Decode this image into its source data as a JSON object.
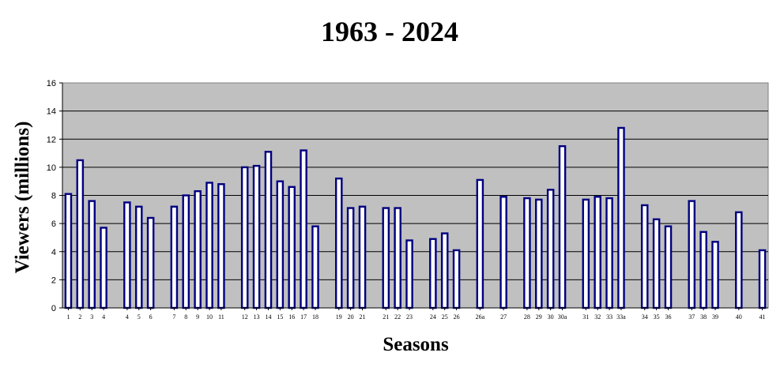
{
  "chart_data": {
    "type": "bar",
    "title": "1963 - 2024",
    "xlabel": "Seasons",
    "ylabel": "Viewers (millions)",
    "ylim": [
      0,
      16
    ],
    "yticks": [
      0,
      2,
      4,
      6,
      8,
      10,
      12,
      14,
      16
    ],
    "grid": true,
    "legend": "none",
    "colors": {
      "plot_background": "#c0c0c0",
      "bar_fill": "#ffffff",
      "bar_border": "#000080",
      "gridline": "#000000"
    },
    "groups": [
      {
        "categories": [
          "1",
          "2",
          "3",
          "4"
        ],
        "values": [
          8.1,
          10.5,
          7.6,
          5.7
        ]
      },
      {
        "categories": [
          "4",
          "5",
          "6"
        ],
        "values": [
          7.5,
          7.2,
          6.4
        ]
      },
      {
        "categories": [
          "7",
          "8",
          "9",
          "10",
          "11"
        ],
        "values": [
          7.2,
          8.0,
          8.3,
          8.9,
          8.8
        ]
      },
      {
        "categories": [
          "12",
          "13",
          "14",
          "15",
          "16",
          "17",
          "18"
        ],
        "values": [
          10.0,
          10.1,
          11.1,
          9.0,
          8.6,
          11.2,
          5.8
        ]
      },
      {
        "categories": [
          "19",
          "20",
          "21"
        ],
        "values": [
          9.2,
          7.1,
          7.2
        ]
      },
      {
        "categories": [
          "21",
          "22",
          "23"
        ],
        "values": [
          7.1,
          7.1,
          4.8
        ]
      },
      {
        "categories": [
          "24",
          "25",
          "26"
        ],
        "values": [
          4.9,
          5.3,
          4.1
        ]
      },
      {
        "categories": [
          "26a"
        ],
        "values": [
          9.1
        ]
      },
      {
        "categories": [
          "27"
        ],
        "values": [
          7.9
        ]
      },
      {
        "categories": [
          "28",
          "29",
          "30",
          "30a"
        ],
        "values": [
          7.8,
          7.7,
          8.4,
          11.5
        ]
      },
      {
        "categories": [
          "31",
          "32",
          "33",
          "33a"
        ],
        "values": [
          7.7,
          7.9,
          7.8,
          12.8
        ]
      },
      {
        "categories": [
          "34",
          "35",
          "36"
        ],
        "values": [
          7.3,
          6.3,
          5.8
        ]
      },
      {
        "categories": [
          "37",
          "38",
          "39"
        ],
        "values": [
          7.6,
          5.4,
          4.7
        ]
      },
      {
        "categories": [
          "40"
        ],
        "values": [
          6.8
        ]
      },
      {
        "categories": [
          "41"
        ],
        "values": [
          4.1
        ]
      }
    ]
  }
}
